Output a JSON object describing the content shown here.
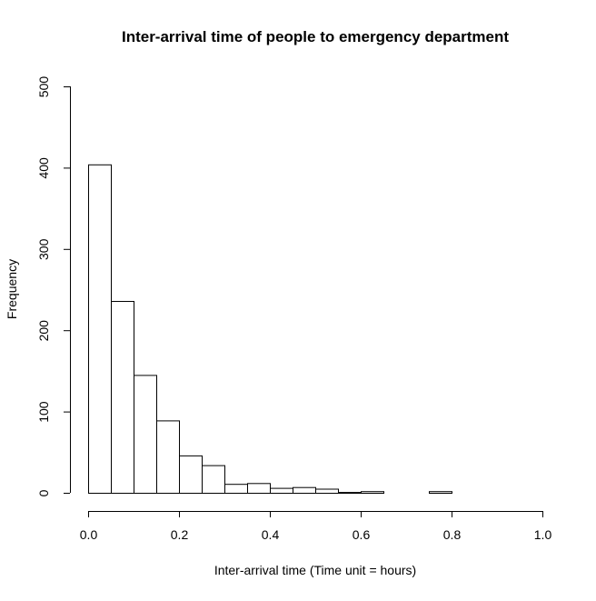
{
  "chart_data": {
    "type": "bar",
    "title": "Inter-arrival time of people to emergency department",
    "xlabel": "Inter-arrival time (Time unit = hours)",
    "ylabel": "Frequency",
    "xlim": [
      0.0,
      1.0
    ],
    "ylim": [
      0,
      500
    ],
    "x_ticks": [
      "0.0",
      "0.2",
      "0.4",
      "0.6",
      "0.8",
      "1.0"
    ],
    "y_ticks": [
      "0",
      "100",
      "200",
      "300",
      "400",
      "500"
    ],
    "bin_width": 0.05,
    "bins": [
      {
        "start": 0.0,
        "end": 0.05,
        "value": 404
      },
      {
        "start": 0.05,
        "end": 0.1,
        "value": 236
      },
      {
        "start": 0.1,
        "end": 0.15,
        "value": 145
      },
      {
        "start": 0.15,
        "end": 0.2,
        "value": 89
      },
      {
        "start": 0.2,
        "end": 0.25,
        "value": 46
      },
      {
        "start": 0.25,
        "end": 0.3,
        "value": 34
      },
      {
        "start": 0.3,
        "end": 0.35,
        "value": 11
      },
      {
        "start": 0.35,
        "end": 0.4,
        "value": 12
      },
      {
        "start": 0.4,
        "end": 0.45,
        "value": 6
      },
      {
        "start": 0.45,
        "end": 0.5,
        "value": 7
      },
      {
        "start": 0.5,
        "end": 0.55,
        "value": 5
      },
      {
        "start": 0.55,
        "end": 0.6,
        "value": 1
      },
      {
        "start": 0.6,
        "end": 0.65,
        "value": 2
      },
      {
        "start": 0.65,
        "end": 0.7,
        "value": 0
      },
      {
        "start": 0.7,
        "end": 0.75,
        "value": 0
      },
      {
        "start": 0.75,
        "end": 0.8,
        "value": 2
      }
    ],
    "grid": false,
    "bar_fill": "#ffffff",
    "bar_stroke": "#000000"
  }
}
